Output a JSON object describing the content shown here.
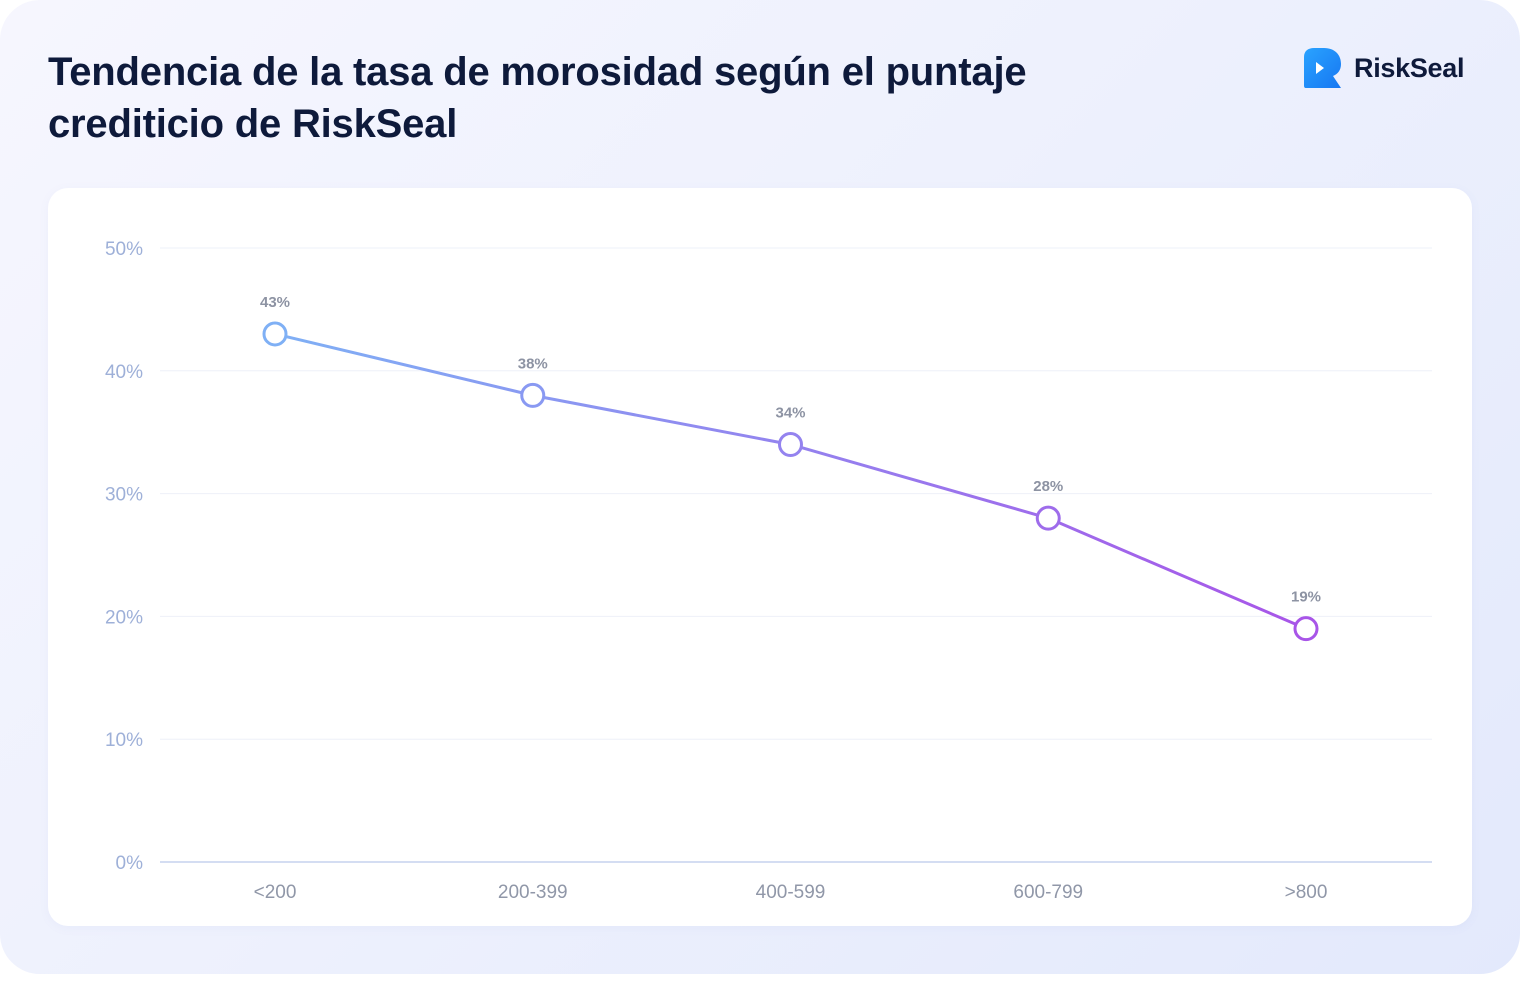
{
  "header": {
    "title": "Tendencia de la tasa de morosidad según el puntaje crediticio de RiskSeal",
    "brand_name": "RiskSeal",
    "brand_icon": "riskseal-logo-icon",
    "brand_color": "#1a8cff"
  },
  "chart_data": {
    "type": "line",
    "title": "Tendencia de la tasa de morosidad según el puntaje crediticio de RiskSeal",
    "xlabel": "",
    "ylabel": "",
    "categories": [
      "<200",
      "200-399",
      "400-599",
      "600-799",
      ">800"
    ],
    "series": [
      {
        "values": [
          43,
          38,
          34,
          28,
          19
        ],
        "data_labels": [
          "43%",
          "38%",
          "34%",
          "28%",
          "19%"
        ]
      }
    ],
    "ylim": [
      0,
      50
    ],
    "yticks": [
      0,
      10,
      20,
      30,
      40,
      50
    ],
    "ytick_labels": [
      "0%",
      "10%",
      "20%",
      "30%",
      "40%",
      "50%"
    ],
    "grid": true,
    "legend": "none",
    "colors": {
      "line_start": "#7fb0f5",
      "line_end": "#a855e8",
      "grid": "#eef0f8",
      "axis": "#c5d2ee"
    }
  }
}
